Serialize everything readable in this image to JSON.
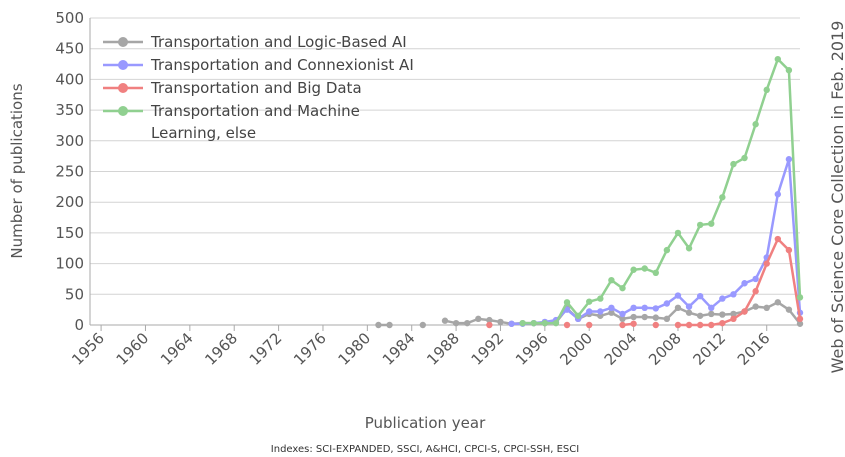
{
  "chart_data": {
    "type": "line",
    "x": [
      1981,
      1982,
      1983,
      1984,
      1985,
      1986,
      1987,
      1988,
      1989,
      1990,
      1991,
      1992,
      1993,
      1994,
      1995,
      1996,
      1997,
      1998,
      1999,
      2000,
      2001,
      2002,
      2003,
      2004,
      2005,
      2006,
      2007,
      2008,
      2009,
      2010,
      2011,
      2012,
      2013,
      2014,
      2015,
      2016,
      2017,
      2018,
      2019
    ],
    "series": [
      {
        "name": "Transportation and Logic-Based AI",
        "color": "#a6a6a6",
        "values": [
          0,
          0,
          null,
          null,
          0,
          null,
          7,
          3,
          3,
          10,
          8,
          5,
          2,
          3,
          3,
          3,
          4,
          27,
          10,
          18,
          15,
          20,
          10,
          13,
          13,
          12,
          10,
          28,
          20,
          15,
          18,
          17,
          18,
          22,
          30,
          28,
          37,
          25,
          2
        ]
      },
      {
        "name": "Transportation and Connexionist AI",
        "color": "#9999ff",
        "values": [
          null,
          null,
          null,
          null,
          null,
          null,
          null,
          null,
          null,
          null,
          null,
          null,
          2,
          2,
          3,
          5,
          8,
          25,
          10,
          22,
          22,
          28,
          18,
          28,
          28,
          27,
          35,
          48,
          30,
          47,
          28,
          43,
          50,
          68,
          75,
          110,
          213,
          270,
          20
        ]
      },
      {
        "name": "Transportation and Big Data",
        "color": "#f08080",
        "values": [
          null,
          null,
          null,
          null,
          null,
          null,
          null,
          null,
          null,
          null,
          0,
          null,
          null,
          null,
          null,
          null,
          null,
          0,
          null,
          0,
          null,
          null,
          0,
          2,
          null,
          0,
          null,
          0,
          0,
          0,
          0,
          3,
          10,
          22,
          55,
          100,
          140,
          122,
          10
        ]
      },
      {
        "name": "Transportation and Machine Learning, else",
        "color": "#90d090",
        "values": [
          null,
          null,
          null,
          null,
          null,
          null,
          null,
          null,
          null,
          null,
          null,
          null,
          null,
          3,
          3,
          3,
          3,
          37,
          15,
          38,
          43,
          73,
          60,
          90,
          92,
          85,
          122,
          150,
          125,
          163,
          165,
          208,
          262,
          272,
          327,
          383,
          433,
          415,
          45
        ]
      }
    ],
    "xlim": [
      1955,
      2019
    ],
    "xticks": [
      1956,
      1960,
      1964,
      1968,
      1972,
      1976,
      1980,
      1984,
      1988,
      1992,
      1996,
      2000,
      2004,
      2008,
      2012,
      2016
    ],
    "ylim": [
      0,
      500
    ],
    "yticks": [
      0,
      50,
      100,
      150,
      200,
      250,
      300,
      350,
      400,
      450,
      500
    ],
    "grid": true,
    "xlabel": "Publication year",
    "ylabel": "Number of publications",
    "side_note": "Web of Science Core Collection in Feb. 2019",
    "footnote": "Indexes: SCI-EXPANDED, SSCI, A&HCI, CPCI-S, CPCI-SSH, ESCI"
  }
}
